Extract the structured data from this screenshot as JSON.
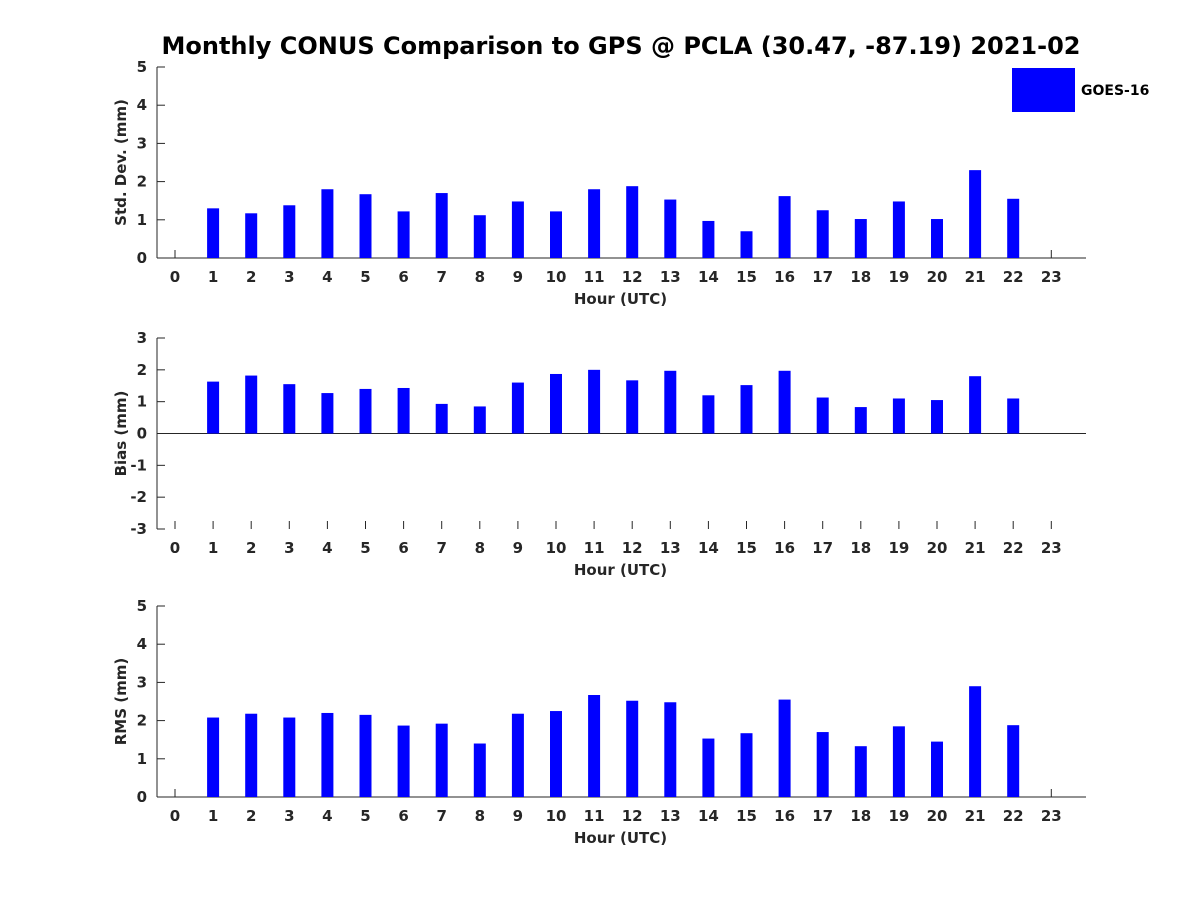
{
  "chart_data": {
    "type": "bar",
    "title": "Monthly CONUS Comparison to GPS @ PCLA (30.47, -87.19) 2021-02",
    "legend": {
      "label": "GOES-16",
      "color": "#0000ff",
      "placement": "top-right"
    },
    "categories": [
      "0",
      "1",
      "2",
      "3",
      "4",
      "5",
      "6",
      "7",
      "8",
      "9",
      "10",
      "11",
      "12",
      "13",
      "14",
      "15",
      "16",
      "17",
      "18",
      "19",
      "20",
      "21",
      "22",
      "23"
    ],
    "panels": [
      {
        "name": "std-dev",
        "ylabel": "Std. Dev. (mm)",
        "xlabel": "Hour (UTC)",
        "ylim": [
          0,
          5
        ],
        "yticks": [
          "0",
          "1",
          "2",
          "3",
          "4",
          "5"
        ],
        "series": [
          {
            "name": "GOES-16",
            "values": [
              null,
              1.3,
              1.17,
              1.38,
              1.8,
              1.67,
              1.22,
              1.7,
              1.12,
              1.48,
              1.22,
              1.8,
              1.88,
              1.53,
              0.97,
              0.7,
              1.62,
              1.25,
              1.02,
              1.48,
              1.02,
              2.3,
              1.55,
              null
            ]
          }
        ]
      },
      {
        "name": "bias",
        "ylabel": "Bias (mm)",
        "xlabel": "Hour (UTC)",
        "ylim": [
          -3,
          3
        ],
        "yticks": [
          "-3",
          "-2",
          "-1",
          "0",
          "1",
          "2",
          "3"
        ],
        "series": [
          {
            "name": "GOES-16",
            "values": [
              null,
              1.63,
              1.82,
              1.55,
              1.27,
              1.4,
              1.43,
              0.93,
              0.85,
              1.6,
              1.87,
              2.0,
              1.67,
              1.97,
              1.2,
              1.52,
              1.97,
              1.13,
              0.83,
              1.1,
              1.05,
              1.8,
              1.1,
              null
            ]
          }
        ]
      },
      {
        "name": "rms",
        "ylabel": "RMS (mm)",
        "xlabel": "Hour (UTC)",
        "ylim": [
          0,
          5
        ],
        "yticks": [
          "0",
          "1",
          "2",
          "3",
          "4",
          "5"
        ],
        "series": [
          {
            "name": "GOES-16",
            "values": [
              null,
              2.08,
              2.18,
              2.08,
              2.2,
              2.15,
              1.87,
              1.92,
              1.4,
              2.18,
              2.25,
              2.67,
              2.52,
              2.48,
              1.53,
              1.67,
              2.55,
              1.7,
              1.33,
              1.85,
              1.45,
              2.9,
              1.88,
              null
            ]
          }
        ]
      }
    ]
  }
}
